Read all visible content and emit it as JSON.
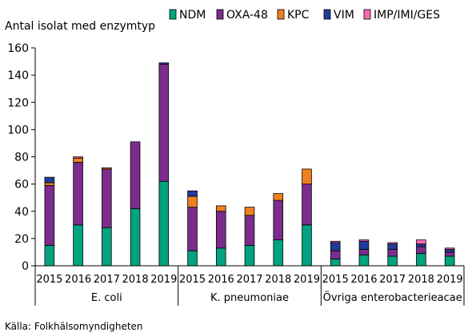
{
  "chart_data": {
    "type": "bar",
    "stacked": true,
    "ylabel": "Antal isolat med enzymtyp",
    "ylim": [
      0,
      160
    ],
    "yticks": [
      0,
      20,
      40,
      60,
      80,
      100,
      120,
      140,
      160
    ],
    "grid": false,
    "legend_position": "top",
    "groups": [
      {
        "name": "E. coli",
        "years": [
          "2015",
          "2016",
          "2017",
          "2018",
          "2019"
        ]
      },
      {
        "name": "K. pneumoniae",
        "years": [
          "2015",
          "2016",
          "2017",
          "2018",
          "2019"
        ]
      },
      {
        "name": "Övriga enterobacterieacae",
        "years": [
          "2015",
          "2016",
          "2017",
          "2018",
          "2019"
        ]
      }
    ],
    "series": [
      {
        "name": "NDM",
        "color": "#00a37f",
        "values": [
          15,
          30,
          28,
          42,
          62,
          11,
          13,
          15,
          19,
          30,
          5,
          8,
          7,
          9,
          7
        ]
      },
      {
        "name": "OXA-48",
        "color": "#7b2d8e",
        "values": [
          44,
          46,
          43,
          49,
          86,
          32,
          27,
          22,
          29,
          30,
          6,
          4,
          5,
          5,
          3
        ]
      },
      {
        "name": "KPC",
        "color": "#f07f1e",
        "values": [
          2,
          3,
          1,
          0,
          0,
          8,
          4,
          6,
          5,
          11,
          0,
          0,
          0,
          0,
          0
        ]
      },
      {
        "name": "VIM",
        "color": "#1f3c9a",
        "values": [
          4,
          0,
          0,
          0,
          1,
          4,
          0,
          0,
          0,
          0,
          6,
          6,
          4,
          2,
          2
        ]
      },
      {
        "name": "IMP/IMI/GES",
        "color": "#ff69b4",
        "values": [
          0,
          1,
          0,
          0,
          0,
          0,
          0,
          0,
          0,
          0,
          1,
          1,
          1,
          3,
          1
        ]
      }
    ]
  },
  "source": "Källa: Folkhälsomyndigheten"
}
